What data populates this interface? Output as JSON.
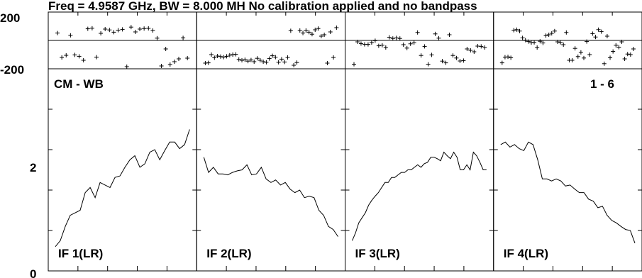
{
  "title": "Freq = 4.9587 GHz, BW = 8.000 MH  No calibration applied and no bandpass",
  "baseline_label": "CM - WB",
  "page_label": "1 - 6",
  "chart_data": {
    "type": "line",
    "phase_panel": {
      "ylim": [
        -200,
        200
      ],
      "yticks": [
        "200",
        "-200"
      ],
      "marker": "+"
    },
    "amp_panel": {
      "ylim": [
        0,
        4
      ],
      "yticks": [
        "2",
        "0"
      ]
    },
    "xlim": [
      0,
      32
    ],
    "panels": [
      {
        "name": "IF 1(LR)",
        "amplitude": [
          0.48,
          0.6,
          0.88,
          1.1,
          1.15,
          1.2,
          1.55,
          1.65,
          1.45,
          1.75,
          1.7,
          1.65,
          1.85,
          1.88,
          2.05,
          2.2,
          2.28,
          2.05,
          2.12,
          2.35,
          2.4,
          2.2,
          2.38,
          2.55,
          2.55,
          2.42,
          2.5,
          2.8
        ],
        "phase": [
          52,
          -120,
          -105,
          36,
          -102,
          -112,
          -140,
          82,
          86,
          -118,
          50,
          80,
          74,
          58,
          72,
          78,
          -205,
          94,
          60,
          80,
          84,
          85,
          70,
          16,
          -180,
          -60,
          -170,
          -150,
          -130,
          18,
          -125
        ]
      },
      {
        "name": "IF 2(LR)",
        "amplitude": [
          2.25,
          1.95,
          2.05,
          1.92,
          1.92,
          1.9,
          1.95,
          1.98,
          2.0,
          2.1,
          1.9,
          1.92,
          2.05,
          1.82,
          1.75,
          1.8,
          1.7,
          1.75,
          1.62,
          1.55,
          1.6,
          1.45,
          1.48,
          1.45,
          1.2,
          1.1,
          0.88,
          0.82,
          0.68
        ],
        "phase": [
          -160,
          -158,
          -100,
          -122,
          -110,
          -114,
          -118,
          -112,
          -104,
          -100,
          -98,
          -134,
          -140,
          -136,
          -146,
          -138,
          -150,
          -126,
          -140,
          -150,
          -154,
          -128,
          -108,
          -118,
          -154,
          -132,
          -152,
          -120,
          68,
          -175,
          -156,
          70,
          52,
          70,
          58,
          44,
          75,
          84,
          30,
          40,
          -160,
          60,
          -120,
          90
        ]
      },
      {
        "name": "IF 3(LR)",
        "amplitude": [
          0.6,
          0.75,
          0.95,
          1.05,
          1.15,
          1.3,
          1.4,
          1.48,
          1.55,
          1.65,
          1.75,
          1.75,
          1.85,
          1.85,
          1.9,
          1.95,
          1.95,
          2.0,
          2.0,
          2.05,
          2.1,
          2.05,
          2.12,
          2.15,
          2.25,
          2.25,
          2.22,
          2.18,
          2.35,
          2.28,
          2.22,
          2.35,
          2.25,
          2.0,
          2.0,
          2.1,
          2.0,
          2.35,
          2.28,
          2.15,
          2.0,
          2.0
        ],
        "phase": [
          -168,
          -10,
          -22,
          -28,
          -28,
          -15,
          -2,
          -38,
          -34,
          -50,
          22,
          14,
          18,
          14,
          -30,
          -54,
          -24,
          -16,
          56,
          -106,
          -42,
          -168,
          -102,
          46,
          16,
          -146,
          -158,
          40,
          -106,
          -124,
          -145,
          -142,
          -60,
          -70,
          -80,
          -40,
          -42,
          -50
        ]
      },
      {
        "name": "IF 4(LR)",
        "amplitude": [
          2.5,
          2.55,
          2.45,
          2.5,
          2.42,
          2.38,
          2.55,
          2.5,
          2.2,
          1.82,
          1.82,
          1.78,
          1.82,
          1.78,
          1.68,
          1.7,
          1.62,
          1.55,
          1.55,
          1.42,
          1.38,
          1.25,
          1.28,
          1.1,
          1.0,
          0.95,
          0.88,
          0.82,
          0.8,
          0.55
        ],
        "phase": [
          -158,
          -118,
          -116,
          -122,
          72,
          76,
          66,
          18,
          2,
          -8,
          -16,
          -14,
          -50,
          -6,
          -18,
          34,
          40,
          50,
          66,
          -10,
          -14,
          -30,
          56,
          -140,
          -140,
          -56,
          -114,
          -84,
          -124,
          -8,
          -100,
          48,
          24,
          76,
          62,
          -164,
          30,
          -122,
          -78,
          -34,
          -48,
          -10,
          -130,
          -96,
          -100,
          -60
        ]
      }
    ]
  }
}
